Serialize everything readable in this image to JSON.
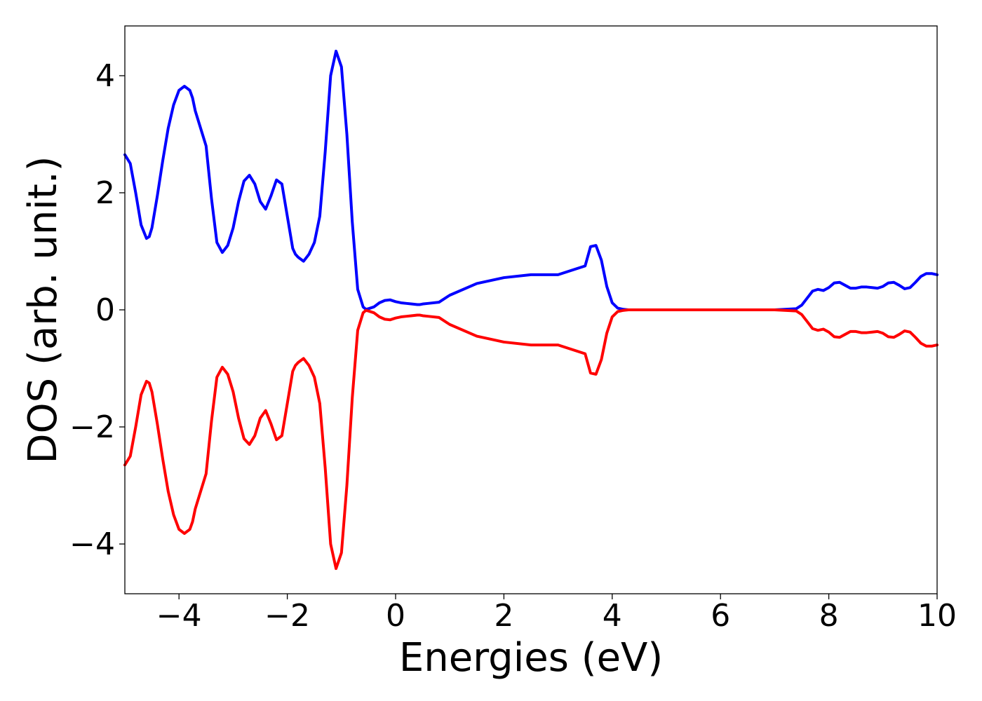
{
  "chart_data": {
    "type": "line",
    "title": "",
    "xlabel": "Energies (eV)",
    "ylabel": "DOS (arb. unit.)",
    "xlim": [
      -5,
      10
    ],
    "ylim": [
      -4.85,
      4.85
    ],
    "xticks": [
      -4,
      -2,
      0,
      2,
      4,
      6,
      8,
      10
    ],
    "xtick_labels": [
      "−4",
      "−2",
      "0",
      "2",
      "4",
      "6",
      "8",
      "10"
    ],
    "yticks": [
      -4,
      -2,
      0,
      2,
      4
    ],
    "ytick_labels": [
      "−4",
      "−2",
      "0",
      "2",
      "4"
    ],
    "grid": false,
    "legend": null,
    "series": [
      {
        "color": "#0000ff",
        "x": [
          -5.0,
          -4.9,
          -4.8,
          -4.7,
          -4.6,
          -4.55,
          -4.5,
          -4.4,
          -4.3,
          -4.2,
          -4.1,
          -4.0,
          -3.9,
          -3.8,
          -3.75,
          -3.7,
          -3.6,
          -3.5,
          -3.4,
          -3.3,
          -3.2,
          -3.1,
          -3.0,
          -2.9,
          -2.8,
          -2.7,
          -2.6,
          -2.5,
          -2.4,
          -2.3,
          -2.2,
          -2.1,
          -2.0,
          -1.9,
          -1.85,
          -1.8,
          -1.7,
          -1.6,
          -1.5,
          -1.4,
          -1.3,
          -1.2,
          -1.1,
          -1.0,
          -0.9,
          -0.8,
          -0.7,
          -0.6,
          -0.55,
          -0.5,
          -0.4,
          -0.3,
          -0.2,
          -0.1,
          0.0,
          0.1,
          0.2,
          0.3,
          0.4,
          0.45,
          0.5,
          0.6,
          0.8,
          1.0,
          1.5,
          2.0,
          2.5,
          3.0,
          3.5,
          3.6,
          3.7,
          3.8,
          3.9,
          4.0,
          4.1,
          4.2,
          4.3,
          4.4,
          4.5,
          4.6,
          4.7,
          4.8,
          4.9,
          5.0,
          6.0,
          7.0,
          7.4,
          7.5,
          7.6,
          7.7,
          7.8,
          7.9,
          8.0,
          8.1,
          8.2,
          8.3,
          8.4,
          8.5,
          8.6,
          8.7,
          8.8,
          8.9,
          9.0,
          9.1,
          9.2,
          9.3,
          9.4,
          9.5,
          9.6,
          9.7,
          9.8,
          9.9,
          10.0
        ],
        "y": [
          2.65,
          2.5,
          2.0,
          1.45,
          1.22,
          1.25,
          1.4,
          1.95,
          2.55,
          3.1,
          3.5,
          3.75,
          3.82,
          3.75,
          3.62,
          3.4,
          3.1,
          2.8,
          1.9,
          1.15,
          0.98,
          1.1,
          1.4,
          1.85,
          2.2,
          2.3,
          2.15,
          1.85,
          1.72,
          1.95,
          2.22,
          2.15,
          1.6,
          1.05,
          0.95,
          0.9,
          0.83,
          0.95,
          1.15,
          1.6,
          2.7,
          4.0,
          4.42,
          4.15,
          3.0,
          1.5,
          0.35,
          0.05,
          0.01,
          0.02,
          0.05,
          0.12,
          0.16,
          0.17,
          0.14,
          0.12,
          0.11,
          0.1,
          0.09,
          0.09,
          0.1,
          0.11,
          0.13,
          0.25,
          0.45,
          0.55,
          0.6,
          0.6,
          0.75,
          1.08,
          1.1,
          0.85,
          0.4,
          0.12,
          0.03,
          0.01,
          0.0,
          0.0,
          0.0,
          0.0,
          0.0,
          0.0,
          0.0,
          0.0,
          0.0,
          0.0,
          0.02,
          0.08,
          0.2,
          0.32,
          0.35,
          0.33,
          0.38,
          0.46,
          0.47,
          0.42,
          0.37,
          0.37,
          0.39,
          0.39,
          0.38,
          0.37,
          0.4,
          0.46,
          0.47,
          0.42,
          0.36,
          0.38,
          0.47,
          0.57,
          0.62,
          0.62,
          0.6
        ]
      },
      {
        "color": "#ff0000",
        "x": [
          -5.0,
          -4.9,
          -4.8,
          -4.7,
          -4.6,
          -4.55,
          -4.5,
          -4.4,
          -4.3,
          -4.2,
          -4.1,
          -4.0,
          -3.9,
          -3.8,
          -3.75,
          -3.7,
          -3.6,
          -3.5,
          -3.4,
          -3.3,
          -3.2,
          -3.1,
          -3.0,
          -2.9,
          -2.8,
          -2.7,
          -2.6,
          -2.5,
          -2.4,
          -2.3,
          -2.2,
          -2.1,
          -2.0,
          -1.9,
          -1.85,
          -1.8,
          -1.7,
          -1.6,
          -1.5,
          -1.4,
          -1.3,
          -1.2,
          -1.1,
          -1.0,
          -0.9,
          -0.8,
          -0.7,
          -0.6,
          -0.55,
          -0.5,
          -0.4,
          -0.3,
          -0.2,
          -0.1,
          0.0,
          0.1,
          0.2,
          0.3,
          0.4,
          0.45,
          0.5,
          0.6,
          0.8,
          1.0,
          1.5,
          2.0,
          2.5,
          3.0,
          3.5,
          3.6,
          3.7,
          3.8,
          3.9,
          4.0,
          4.1,
          4.2,
          4.3,
          4.4,
          4.5,
          4.6,
          4.7,
          4.8,
          4.9,
          5.0,
          6.0,
          7.0,
          7.4,
          7.5,
          7.6,
          7.7,
          7.8,
          7.9,
          8.0,
          8.1,
          8.2,
          8.3,
          8.4,
          8.5,
          8.6,
          8.7,
          8.8,
          8.9,
          9.0,
          9.1,
          9.2,
          9.3,
          9.4,
          9.5,
          9.6,
          9.7,
          9.8,
          9.9,
          10.0
        ],
        "y": [
          -2.65,
          -2.5,
          -2.0,
          -1.45,
          -1.22,
          -1.25,
          -1.4,
          -1.95,
          -2.55,
          -3.1,
          -3.5,
          -3.75,
          -3.82,
          -3.75,
          -3.62,
          -3.4,
          -3.1,
          -2.8,
          -1.9,
          -1.15,
          -0.98,
          -1.1,
          -1.4,
          -1.85,
          -2.2,
          -2.3,
          -2.15,
          -1.85,
          -1.72,
          -1.95,
          -2.22,
          -2.15,
          -1.6,
          -1.05,
          -0.95,
          -0.9,
          -0.83,
          -0.95,
          -1.15,
          -1.6,
          -2.7,
          -4.0,
          -4.42,
          -4.15,
          -3.0,
          -1.5,
          -0.35,
          -0.05,
          -0.01,
          -0.02,
          -0.05,
          -0.12,
          -0.16,
          -0.17,
          -0.14,
          -0.12,
          -0.11,
          -0.1,
          -0.09,
          -0.09,
          -0.1,
          -0.11,
          -0.13,
          -0.25,
          -0.45,
          -0.55,
          -0.6,
          -0.6,
          -0.75,
          -1.08,
          -1.1,
          -0.85,
          -0.4,
          -0.12,
          -0.03,
          -0.01,
          0.0,
          0.0,
          0.0,
          0.0,
          0.0,
          0.0,
          0.0,
          0.0,
          0.0,
          0.0,
          -0.02,
          -0.08,
          -0.2,
          -0.32,
          -0.35,
          -0.33,
          -0.38,
          -0.46,
          -0.47,
          -0.42,
          -0.37,
          -0.37,
          -0.39,
          -0.39,
          -0.38,
          -0.37,
          -0.4,
          -0.46,
          -0.47,
          -0.42,
          -0.36,
          -0.38,
          -0.47,
          -0.57,
          -0.62,
          -0.62,
          -0.6
        ]
      }
    ]
  }
}
